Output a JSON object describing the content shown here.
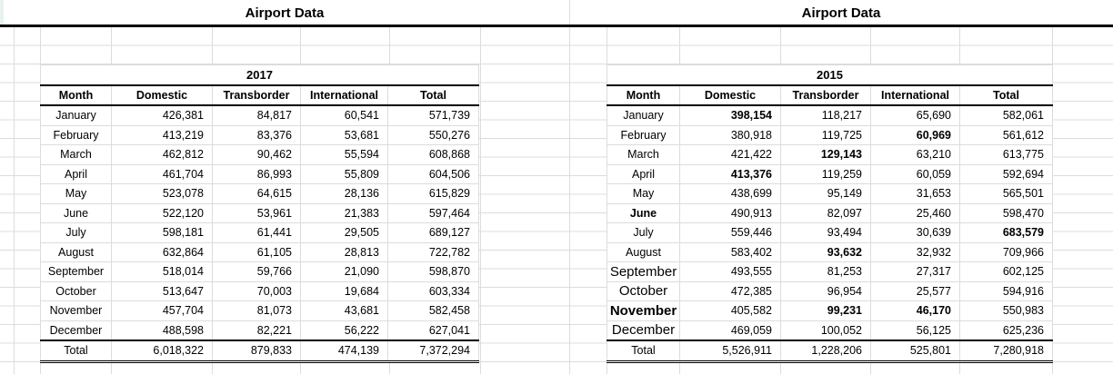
{
  "sheet": {
    "titles": [
      {
        "text": "Airport Data"
      },
      {
        "text": "Airport Data"
      }
    ],
    "tables": [
      {
        "year": "2017",
        "columns": [
          "Month",
          "Domestic",
          "Transborder",
          "International",
          "Total"
        ],
        "rows": [
          {
            "month": "January",
            "values": [
              "426,381",
              "84,817",
              "60,541",
              "571,739"
            ]
          },
          {
            "month": "February",
            "values": [
              "413,219",
              "83,376",
              "53,681",
              "550,276"
            ]
          },
          {
            "month": "March",
            "values": [
              "462,812",
              "90,462",
              "55,594",
              "608,868"
            ]
          },
          {
            "month": "April",
            "values": [
              "461,704",
              "86,993",
              "55,809",
              "604,506"
            ]
          },
          {
            "month": "May",
            "values": [
              "523,078",
              "64,615",
              "28,136",
              "615,829"
            ]
          },
          {
            "month": "June",
            "values": [
              "522,120",
              "53,961",
              "21,383",
              "597,464"
            ]
          },
          {
            "month": "July",
            "values": [
              "598,181",
              "61,441",
              "29,505",
              "689,127"
            ]
          },
          {
            "month": "August",
            "values": [
              "632,864",
              "61,105",
              "28,813",
              "722,782"
            ]
          },
          {
            "month": "September",
            "values": [
              "518,014",
              "59,766",
              "21,090",
              "598,870"
            ]
          },
          {
            "month": "October",
            "values": [
              "513,647",
              "70,003",
              "19,684",
              "603,334"
            ]
          },
          {
            "month": "November",
            "values": [
              "457,704",
              "81,073",
              "43,681",
              "582,458"
            ]
          },
          {
            "month": "December",
            "values": [
              "488,598",
              "82,221",
              "56,222",
              "627,041"
            ]
          }
        ],
        "total": {
          "label": "Total",
          "values": [
            "6,018,322",
            "879,833",
            "474,139",
            "7,372,294"
          ]
        }
      },
      {
        "year": "2015",
        "columns": [
          "Month",
          "Domestic",
          "Transborder",
          "International",
          "Total"
        ],
        "rows": [
          {
            "month": "January",
            "values": [
              "398,154",
              "118,217",
              "65,690",
              "582,061"
            ],
            "bold": [
              0
            ]
          },
          {
            "month": "February",
            "values": [
              "380,918",
              "119,725",
              "60,969",
              "561,612"
            ],
            "bold": [
              2
            ]
          },
          {
            "month": "March",
            "values": [
              "421,422",
              "129,143",
              "63,210",
              "613,775"
            ],
            "bold": [
              1
            ]
          },
          {
            "month": "April",
            "values": [
              "413,376",
              "119,259",
              "60,059",
              "592,694"
            ],
            "bold": [
              0
            ]
          },
          {
            "month": "May",
            "values": [
              "438,699",
              "95,149",
              "31,653",
              "565,501"
            ]
          },
          {
            "month": "June",
            "values": [
              "490,913",
              "82,097",
              "25,460",
              "598,470"
            ],
            "bold_month": true
          },
          {
            "month": "July",
            "values": [
              "559,446",
              "93,494",
              "30,639",
              "683,579"
            ],
            "bold": [
              3
            ]
          },
          {
            "month": "August",
            "values": [
              "583,402",
              "93,632",
              "32,932",
              "709,966"
            ],
            "bold": [
              1
            ]
          },
          {
            "month": "September",
            "values": [
              "493,555",
              "81,253",
              "27,317",
              "602,125"
            ],
            "alt_month": true
          },
          {
            "month": "October",
            "values": [
              "472,385",
              "96,954",
              "25,577",
              "594,916"
            ],
            "alt_month": true
          },
          {
            "month": "November",
            "values": [
              "405,582",
              "99,231",
              "46,170",
              "550,983"
            ],
            "alt_month": true,
            "bold_month": true,
            "bold": [
              1,
              2
            ]
          },
          {
            "month": "December",
            "values": [
              "469,059",
              "100,052",
              "56,125",
              "625,236"
            ],
            "alt_month": true
          }
        ],
        "total": {
          "label": "Total",
          "values": [
            "5,526,911",
            "1,228,206",
            "525,801",
            "7,280,918"
          ]
        }
      }
    ]
  }
}
